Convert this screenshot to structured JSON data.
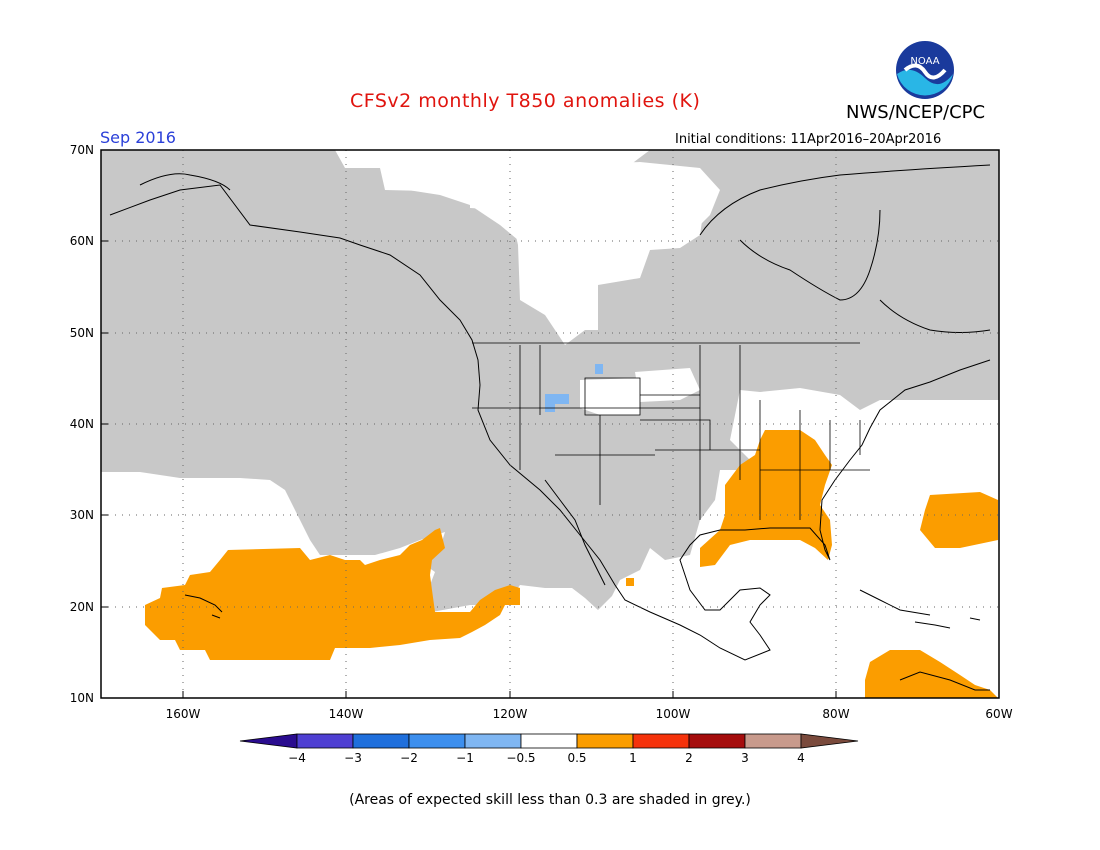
{
  "title": "CFSv2 monthly T850 anomalies (K)",
  "org": "NWS/NCEP/CPC",
  "logo_text": "NOAA",
  "valid_month": "Sep 2016",
  "initial_conditions": "Initial conditions: 11Apr2016–20Apr2016",
  "lat_ticks": [
    "70N",
    "60N",
    "50N",
    "40N",
    "30N",
    "20N",
    "10N"
  ],
  "lon_ticks": [
    "160W",
    "140W",
    "120W",
    "100W",
    "80W",
    "60W"
  ],
  "colorbar": {
    "labels": [
      "−4",
      "−3",
      "−2",
      "−1",
      "−0.5",
      "0.5",
      "1",
      "2",
      "3",
      "4"
    ],
    "colors": [
      "#2a0c8f",
      "#4e3fd2",
      "#1f6fdc",
      "#3d8fee",
      "#7fb6f2",
      "#ffffff",
      "#fb9d00",
      "#f5320b",
      "#a50d0d",
      "#c89a8c",
      "#7a4a3c"
    ]
  },
  "footnote": "(Areas of expected skill less than 0.3 are shaded in grey.)",
  "colors": {
    "skill_grey": "#c8c8c8",
    "anom_orange": "#fb9d00",
    "anom_lightblue": "#7fb6f2",
    "title_red": "#e0140e",
    "date_blue": "#2a3fd8"
  }
}
